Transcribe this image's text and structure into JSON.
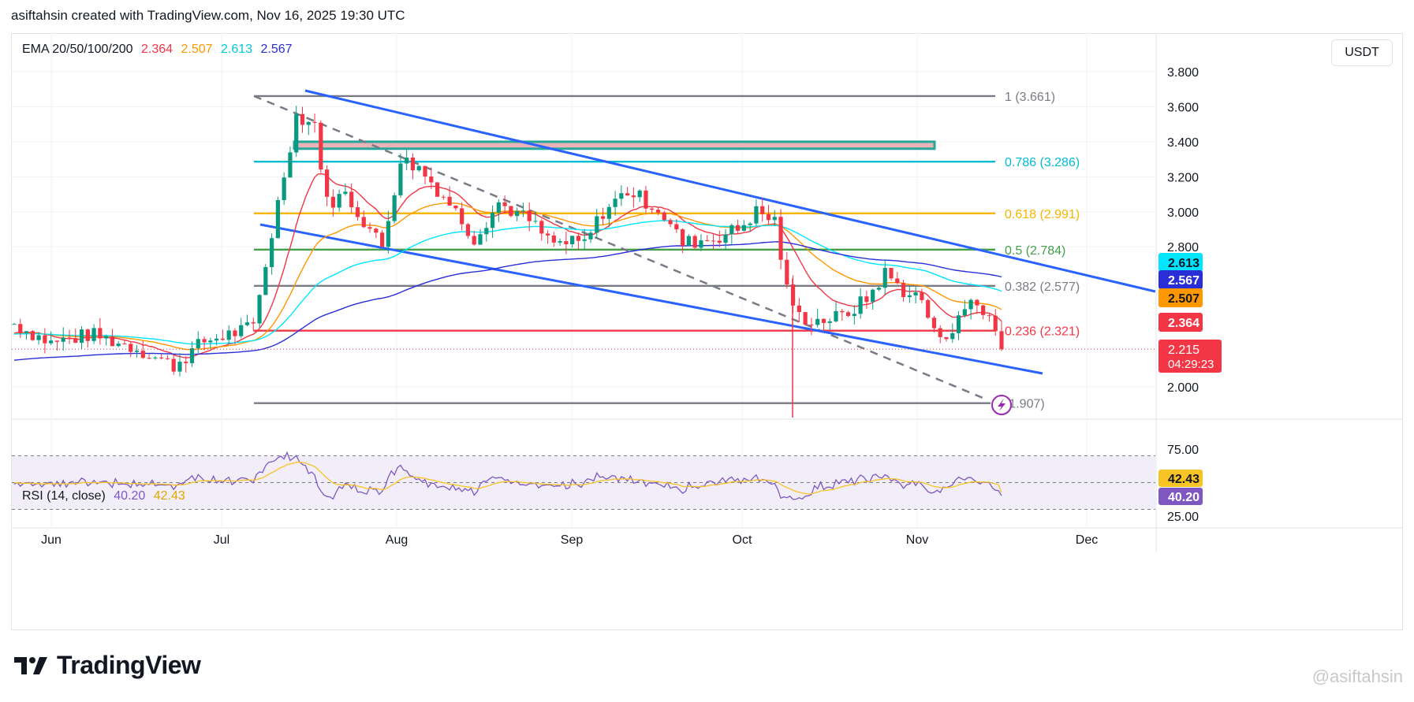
{
  "header": {
    "text": "asiftahsin created with TradingView.com, Nov 16, 2025 19:30 UTC"
  },
  "currency": "USDT",
  "footer": {
    "brand": "TradingView",
    "watermark": "@asiftahsin"
  },
  "ema_legend": {
    "label": "EMA 20/50/100/200",
    "values": [
      {
        "value": "2.364",
        "color": "#f23645"
      },
      {
        "value": "2.507",
        "color": "#ff9800"
      },
      {
        "value": "2.613",
        "color": "#00e5ff"
      },
      {
        "value": "2.567",
        "color": "#2a2ed6"
      }
    ]
  },
  "rsi_legend": {
    "label": "RSI (14, close)",
    "values": [
      {
        "value": "40.20",
        "color": "#7e57c2"
      },
      {
        "value": "42.43",
        "color": "#f7c325"
      }
    ]
  },
  "chart_data": {
    "type": "candlestick",
    "price_axis": {
      "ticks": [
        "3.800",
        "3.600",
        "3.400",
        "3.200",
        "3.000",
        "2.800",
        "2.000"
      ],
      "tick_values": [
        3.8,
        3.6,
        3.4,
        3.2,
        3.0,
        2.8,
        2.0
      ]
    },
    "rsi_axis": {
      "ticks": [
        "75.00",
        "25.00"
      ],
      "tick_values": [
        75,
        25
      ],
      "band": [
        30,
        70
      ]
    },
    "time_axis": {
      "labels": [
        "Jun",
        "Jul",
        "Aug",
        "Sep",
        "Oct",
        "Nov",
        "Dec"
      ]
    },
    "price_badges": [
      {
        "text": "2.613",
        "value": 2.613,
        "bg": "#00e5ff",
        "fg": "#131722"
      },
      {
        "text": "2.567",
        "value": 2.567,
        "bg": "#2a2ed6",
        "fg": "#ffffff"
      },
      {
        "text": "2.507",
        "value": 2.507,
        "bg": "#ff9800",
        "fg": "#131722"
      },
      {
        "text": "2.364",
        "value": 2.364,
        "bg": "#f23645",
        "fg": "#ffffff"
      }
    ],
    "current_price": {
      "text": "2.215",
      "value": 2.215,
      "countdown": "04:29:23"
    },
    "rsi_badges": [
      {
        "text": "42.43",
        "value": 42.43,
        "bg": "#f7c325",
        "fg": "#131722"
      },
      {
        "text": "40.20",
        "value": 40.2,
        "bg": "#7e57c2",
        "fg": "#ffffff"
      }
    ],
    "fib_levels": [
      {
        "label": "1 (3.661)",
        "value": 3.661,
        "color": "#787b86"
      },
      {
        "label": "0.786 (3.286)",
        "value": 3.286,
        "color": "#00bcd4"
      },
      {
        "label": "0.618 (2.991)",
        "value": 2.991,
        "color": "#f7b500"
      },
      {
        "label": "0.5 (2.784)",
        "value": 2.784,
        "color": "#43a047"
      },
      {
        "label": "0.382 (2.577)",
        "value": 2.577,
        "color": "#787b86"
      },
      {
        "label": "0.236 (2.321)",
        "value": 2.321,
        "color": "#f23645"
      },
      {
        "label": "(1.907)",
        "value": 1.907,
        "color": "#787b86"
      }
    ],
    "resistance_zone": [
      3.36,
      3.4
    ],
    "colors": {
      "up": "#089981",
      "down": "#f23645",
      "channel": "#2962ff",
      "dashed": "#787b86",
      "rsi": "#7e57c2",
      "rsi_ma": "#f7c325",
      "band": "#ede7f6"
    }
  }
}
